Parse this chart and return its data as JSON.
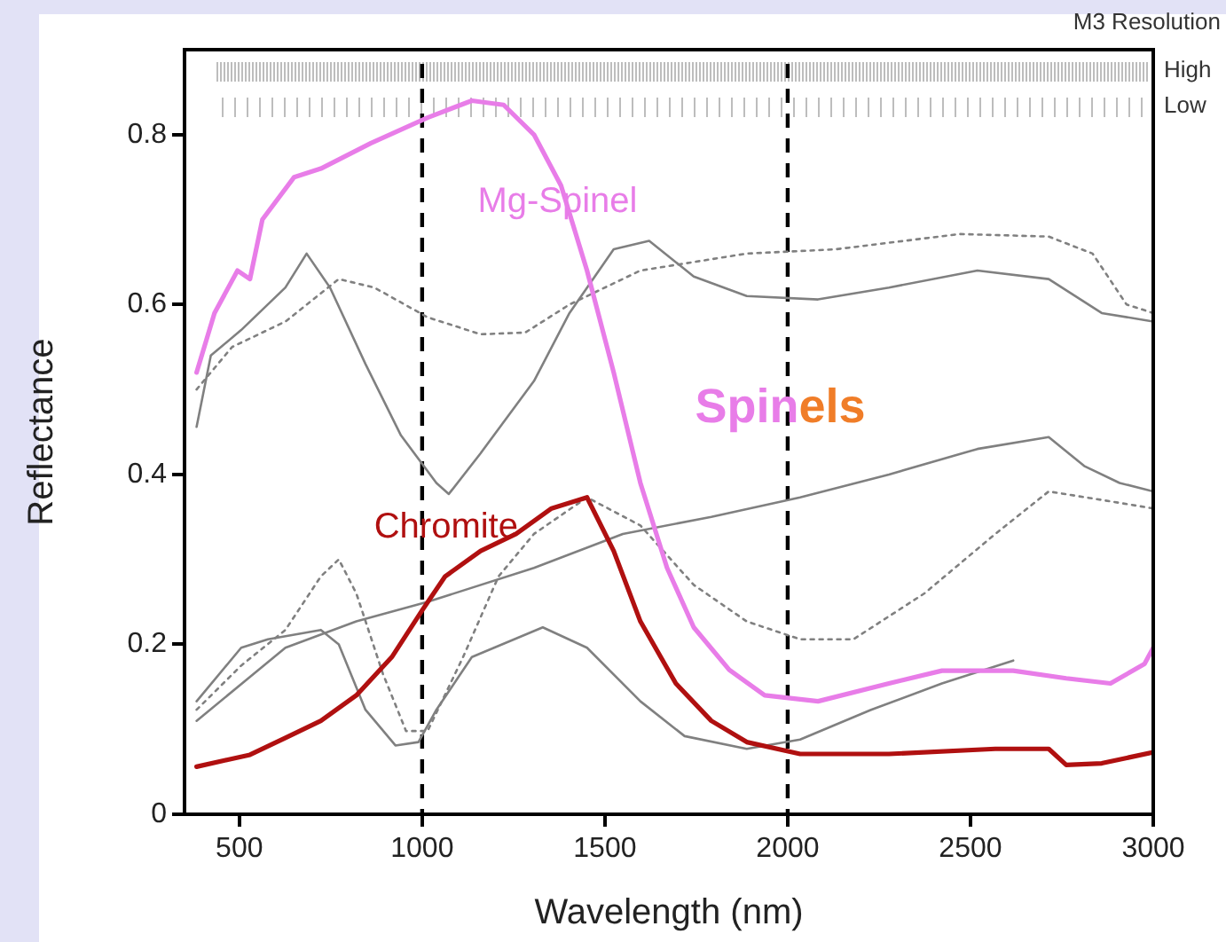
{
  "chart_data": {
    "type": "line",
    "xlabel": "Wavelength (nm)",
    "ylabel": "Reflectance",
    "xlim": [
      350,
      3000
    ],
    "xticks": [
      500,
      1000,
      1500,
      2000,
      2500,
      3000
    ],
    "ylim": [
      0,
      0.9
    ],
    "yticks": [
      0,
      0.2,
      0.4,
      0.6,
      0.8
    ],
    "grid": false,
    "legend": false,
    "marker": "none",
    "ref_lines": [
      {
        "axis": "x",
        "value": 1000,
        "color": "#000000",
        "line_style": "dashed"
      },
      {
        "axis": "x",
        "value": 2000,
        "color": "#000000",
        "line_style": "dashed"
      }
    ],
    "annotations": [
      "Spinels",
      "M3 Resolution",
      "High",
      "Low"
    ],
    "series": [
      {
        "name": "Mg-Spinel",
        "color": "#e87de8",
        "line_style": "solid",
        "x": [
          383,
          432,
          495,
          529,
          563,
          650,
          723,
          860,
          1015,
          1136,
          1223,
          1306,
          1380,
          1451,
          1524,
          1597,
          1670,
          1743,
          1840,
          1937,
          2083,
          2277,
          2422,
          2617,
          2762,
          2883,
          2976,
          3000
        ],
        "values": [
          0.52,
          0.59,
          0.64,
          0.63,
          0.7,
          0.75,
          0.76,
          0.79,
          0.82,
          0.84,
          0.835,
          0.8,
          0.74,
          0.64,
          0.52,
          0.39,
          0.29,
          0.22,
          0.17,
          0.14,
          0.133,
          0.154,
          0.169,
          0.169,
          0.16,
          0.154,
          0.177,
          0.196
        ]
      },
      {
        "name": "Chromite",
        "color": "#b01010",
        "line_style": "solid",
        "x": [
          383,
          529,
          626,
          723,
          820,
          917,
          1000,
          1063,
          1160,
          1257,
          1354,
          1451,
          1524,
          1597,
          1694,
          1791,
          1888,
          2034,
          2277,
          2568,
          2714,
          2762,
          2859,
          3000
        ],
        "values": [
          0.056,
          0.07,
          0.09,
          0.11,
          0.14,
          0.185,
          0.24,
          0.28,
          0.31,
          0.33,
          0.36,
          0.373,
          0.31,
          0.227,
          0.154,
          0.11,
          0.085,
          0.071,
          0.071,
          0.077,
          0.077,
          0.058,
          0.06,
          0.073
        ]
      },
      {
        "color": "#808080",
        "line_style": "solid",
        "x": [
          383,
          422,
          505,
          626,
          684,
          748,
          845,
          942,
          1039,
          1073,
          1160,
          1306,
          1403,
          1524,
          1621,
          1743,
          1888,
          2083,
          2277,
          2519,
          2714,
          2859,
          3000
        ],
        "values": [
          0.456,
          0.54,
          0.57,
          0.62,
          0.66,
          0.62,
          0.53,
          0.446,
          0.39,
          0.377,
          0.425,
          0.51,
          0.59,
          0.665,
          0.675,
          0.633,
          0.61,
          0.606,
          0.62,
          0.64,
          0.63,
          0.59,
          0.58
        ]
      },
      {
        "color": "#808080",
        "line_style": "dotted",
        "x": [
          383,
          480,
          626,
          772,
          869,
          1015,
          1160,
          1282,
          1403,
          1597,
          1888,
          2131,
          2471,
          2714,
          2834,
          2927,
          3000
        ],
        "values": [
          0.5,
          0.55,
          0.58,
          0.63,
          0.62,
          0.585,
          0.565,
          0.567,
          0.6,
          0.64,
          0.66,
          0.665,
          0.683,
          0.68,
          0.66,
          0.6,
          0.59
        ]
      },
      {
        "color": "#808080",
        "line_style": "solid",
        "x": [
          383,
          626,
          820,
          1015,
          1306,
          1549,
          1791,
          2034,
          2277,
          2519,
          2714,
          2811,
          2908,
          3000
        ],
        "values": [
          0.11,
          0.196,
          0.227,
          0.25,
          0.29,
          0.33,
          0.35,
          0.373,
          0.4,
          0.43,
          0.444,
          0.41,
          0.39,
          0.38
        ]
      },
      {
        "color": "#808080",
        "line_style": "dotted",
        "x": [
          383,
          505,
          626,
          723,
          772,
          820,
          893,
          956,
          1015,
          1112,
          1209,
          1306,
          1451,
          1597,
          1743,
          1888,
          2034,
          2180,
          2374,
          2568,
          2714,
          2859,
          3000
        ],
        "values": [
          0.123,
          0.175,
          0.217,
          0.28,
          0.3,
          0.26,
          0.165,
          0.098,
          0.098,
          0.185,
          0.28,
          0.33,
          0.373,
          0.34,
          0.27,
          0.227,
          0.206,
          0.206,
          0.26,
          0.33,
          0.38,
          0.37,
          0.36
        ]
      },
      {
        "color": "#808080",
        "line_style": "solid",
        "x": [
          383,
          505,
          578,
          723,
          772,
          845,
          927,
          990,
          1039,
          1136,
          1330,
          1451,
          1597,
          1718,
          1888,
          2034,
          2228,
          2422,
          2617
        ],
        "values": [
          0.133,
          0.196,
          0.206,
          0.217,
          0.2,
          0.123,
          0.081,
          0.085,
          0.123,
          0.185,
          0.22,
          0.196,
          0.133,
          0.092,
          0.077,
          0.088,
          0.123,
          0.154,
          0.181
        ]
      }
    ]
  }
}
